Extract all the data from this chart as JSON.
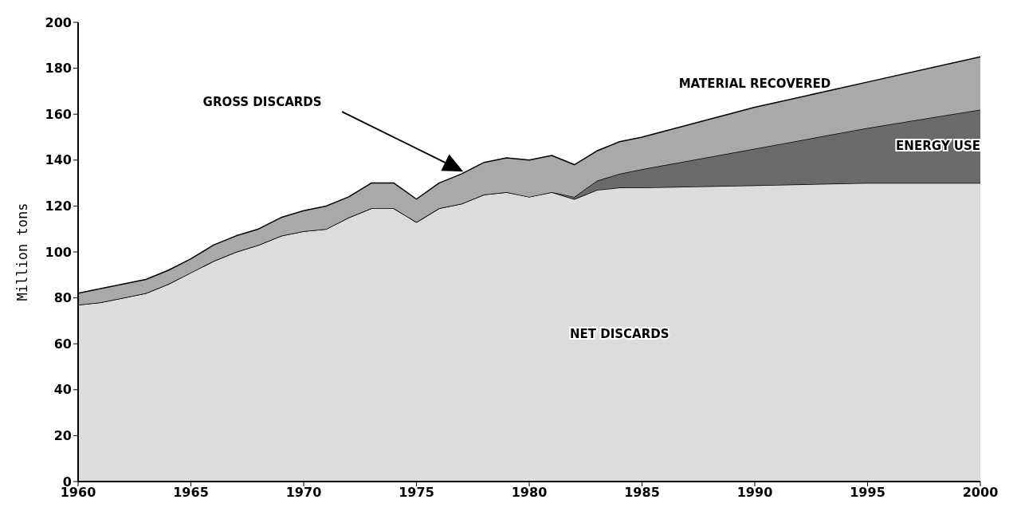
{
  "chart_data": {
    "type": "area",
    "stacked": true,
    "ylabel": "Million tons",
    "x": [
      1960,
      1961,
      1962,
      1963,
      1964,
      1965,
      1966,
      1967,
      1968,
      1969,
      1970,
      1971,
      1972,
      1973,
      1974,
      1975,
      1976,
      1977,
      1978,
      1979,
      1980,
      1981,
      1982,
      1983,
      1984,
      1985,
      1990,
      1995,
      2000
    ],
    "series": [
      {
        "name": "NET DISCARDS",
        "color": "#dcdcdc",
        "values": [
          77,
          78,
          80,
          82,
          86,
          91,
          96,
          100,
          103,
          107,
          109,
          110,
          115,
          119,
          119,
          113,
          119,
          121,
          125,
          126,
          124,
          126,
          123,
          127,
          128,
          128,
          129,
          130,
          130
        ]
      },
      {
        "name": "ENERGY USE",
        "color": "#6a6a6a",
        "values": [
          0,
          0,
          0,
          0,
          0,
          0,
          0,
          0,
          0,
          0,
          0,
          0,
          0,
          0,
          0,
          0,
          0,
          0,
          0,
          0,
          0,
          0,
          1,
          4,
          6,
          8,
          16,
          24,
          32
        ]
      },
      {
        "name": "MATERIAL RECOVERED",
        "color": "#a9a9a9",
        "values": [
          5,
          6,
          6,
          6,
          6,
          6,
          7,
          7,
          7,
          8,
          9,
          10,
          9,
          11,
          11,
          10,
          11,
          13,
          14,
          15,
          16,
          16,
          14,
          13,
          14,
          14,
          18,
          20,
          23
        ]
      }
    ],
    "annotations": [
      "GROSS DISCARDS"
    ],
    "xlim": [
      1960,
      2000
    ],
    "xticks": [
      1960,
      1965,
      1970,
      1975,
      1980,
      1985,
      1990,
      1995,
      2000
    ],
    "ylim": [
      0,
      200
    ],
    "yticks": [
      0,
      20,
      40,
      60,
      80,
      100,
      120,
      140,
      160,
      180,
      200
    ],
    "grid": false
  }
}
